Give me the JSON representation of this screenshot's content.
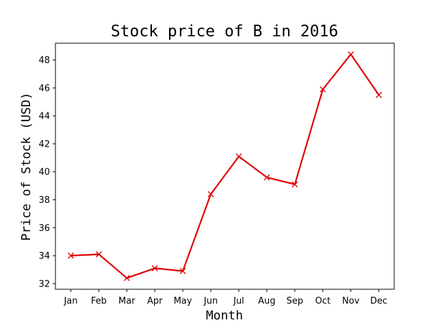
{
  "chart_data": {
    "type": "line",
    "title": "Stock price of B in 2016",
    "xlabel": "Month",
    "ylabel": "Price of Stock (USD)",
    "categories": [
      "Jan",
      "Feb",
      "Mar",
      "Apr",
      "May",
      "Jun",
      "Jul",
      "Aug",
      "Sep",
      "Oct",
      "Nov",
      "Dec"
    ],
    "series": [
      {
        "values": [
          34.0,
          34.1,
          32.4,
          33.1,
          32.9,
          38.4,
          41.1,
          39.6,
          39.1,
          45.9,
          48.4,
          45.5
        ],
        "color": "#e00000",
        "marker": "x"
      }
    ],
    "ylim": [
      31.6,
      49.2
    ],
    "yticks": [
      32,
      34,
      36,
      38,
      40,
      42,
      44,
      46,
      48
    ],
    "grid": false,
    "legend": "none"
  }
}
